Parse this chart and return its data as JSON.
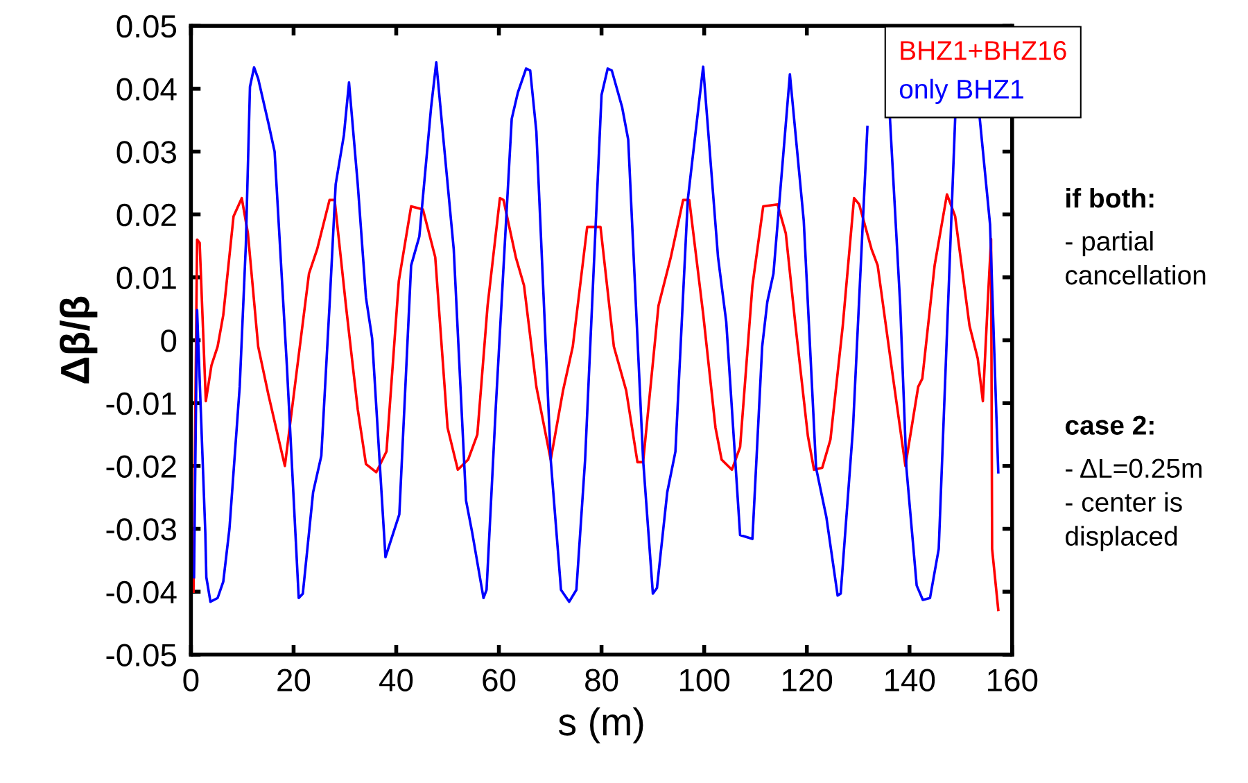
{
  "chart_data": {
    "type": "line",
    "xlabel": "s (m)",
    "ylabel": "Δβ/β",
    "xlim": [
      0,
      160
    ],
    "xticks": [
      0,
      20,
      40,
      60,
      80,
      100,
      120,
      140,
      160
    ],
    "ylim": [
      -0.05,
      0.05
    ],
    "yticks": [
      {
        "value": -0.05,
        "label": "-0.05"
      },
      {
        "value": -0.04,
        "label": "-0.04"
      },
      {
        "value": -0.03,
        "label": "-0.03"
      },
      {
        "value": -0.02,
        "label": "-0.02"
      },
      {
        "value": -0.01,
        "label": "-0.01"
      },
      {
        "value": 0,
        "label": "0"
      },
      {
        "value": 0.01,
        "label": "0.01"
      },
      {
        "value": 0.02,
        "label": "0.02"
      },
      {
        "value": 0.03,
        "label": "0.03"
      },
      {
        "value": 0.04,
        "label": "0.04"
      },
      {
        "value": 0.05,
        "label": "0.05"
      }
    ],
    "grid": false,
    "legend": "top right",
    "marker": "none",
    "line_style": "solid",
    "series": [
      {
        "name": "BHZ1+BHZ16",
        "color": "#ff0000",
        "x": [
          0.5,
          1.2,
          1.7,
          2.9,
          4,
          5.2,
          6.3,
          8.3,
          9.9,
          11.1,
          13.1,
          15.1,
          18.3,
          20.6,
          23,
          24.6,
          27,
          28,
          30.2,
          32.5,
          34.1,
          36.1,
          38.1,
          40.5,
          42.9,
          45.2,
          47.6,
          50,
          52,
          54,
          55.8,
          57.8,
          60.2,
          60.9,
          63.3,
          64.9,
          67.3,
          70.1,
          72.5,
          74.4,
          77.2,
          79.8,
          82.4,
          84.8,
          87,
          88.1,
          91.1,
          93.5,
          95.9,
          97.1,
          99.8,
          102.2,
          103.4,
          105.4,
          107,
          109.4,
          111.5,
          114.3,
          115.9,
          117.8,
          120.2,
          121.4,
          123,
          124.6,
          127,
          129.2,
          130.2,
          132.6,
          133.8,
          136.6,
          139.2,
          141.7,
          142.5,
          144.9,
          147.3,
          148.9,
          151.7,
          153.3,
          154.3,
          155.3,
          155.9,
          156.1,
          157.3
        ],
        "values": [
          -0.04,
          0.016,
          0.0155,
          -0.0097,
          -0.004,
          -0.001,
          0.004,
          0.0197,
          0.0226,
          0.017,
          -0.001,
          -0.0087,
          -0.02,
          -0.005,
          0.0106,
          0.0145,
          0.0223,
          0.0223,
          0.0055,
          -0.011,
          -0.0197,
          -0.021,
          -0.0177,
          0.0094,
          0.0213,
          0.0208,
          0.0132,
          -0.0139,
          -0.0206,
          -0.019,
          -0.015,
          0.0055,
          0.0226,
          0.0223,
          0.0132,
          0.0087,
          -0.0074,
          -0.019,
          -0.008,
          -0.001,
          0.018,
          0.018,
          -0.001,
          -0.008,
          -0.0194,
          -0.0194,
          0.0055,
          0.0132,
          0.0223,
          0.0223,
          0.0042,
          -0.0139,
          -0.019,
          -0.0206,
          -0.017,
          0.0087,
          0.0213,
          0.0216,
          0.017,
          0.0023,
          -0.0152,
          -0.0206,
          -0.0203,
          -0.0158,
          0.0023,
          0.0226,
          0.0216,
          0.0145,
          0.0119,
          -0.0048,
          -0.02,
          -0.0074,
          -0.0061,
          0.0119,
          0.0232,
          0.0197,
          0.0023,
          -0.0029,
          -0.0097,
          0.0068,
          0.0161,
          -0.0332,
          -0.0429
        ]
      },
      {
        "name": "only BHZ1",
        "color": "#0000ff",
        "x": [
          0.6,
          1.2,
          2.8,
          3,
          3.8,
          5.2,
          6.3,
          7.5,
          9.5,
          10.7,
          11.5,
          12.3,
          13.1,
          15.1,
          16.3,
          18.7,
          21,
          21.8,
          23.8,
          25.4,
          27,
          28.2,
          29.8,
          30.8,
          32.5,
          34.1,
          35.3,
          37.9,
          40.6,
          42.9,
          44.5,
          46.8,
          47.8,
          49.2,
          51.2,
          53.6,
          54.8,
          57,
          57.6,
          59.4,
          62.5,
          63.7,
          65.3,
          66.1,
          67.3,
          70.1,
          72.1,
          73.7,
          75.1,
          76.8,
          80,
          81.2,
          82,
          84,
          85.2,
          88.1,
          90,
          90.8,
          92.8,
          94.4,
          96.8,
          99.8,
          102.7,
          104.3,
          107,
          109.4,
          111.3,
          112.3,
          113.5,
          116.7,
          119.4,
          121.8,
          123.8,
          126,
          126.6,
          129,
          131.8,
          134,
          136.2,
          138.2,
          139.4,
          141.4,
          142.6,
          144,
          145.7,
          148.9,
          151.3,
          153.7,
          155.7,
          157.3
        ],
        "values": [
          -0.0377,
          0.0048,
          -0.0306,
          -0.0377,
          -0.0416,
          -0.041,
          -0.0384,
          -0.03,
          -0.0074,
          0.0152,
          0.0403,
          0.0434,
          0.0416,
          0.0345,
          0.03,
          -0.0042,
          -0.041,
          -0.0403,
          -0.0242,
          -0.0184,
          0.0055,
          0.0248,
          0.0326,
          0.041,
          0.0248,
          0.0068,
          0.0003,
          -0.0345,
          -0.0277,
          0.0119,
          0.0165,
          0.0371,
          0.0442,
          0.0319,
          0.0145,
          -0.0255,
          -0.0306,
          -0.041,
          -0.0397,
          -0.0106,
          0.0352,
          0.0394,
          0.0432,
          0.0429,
          0.0332,
          -0.019,
          -0.0397,
          -0.0416,
          -0.0397,
          -0.019,
          0.039,
          0.0432,
          0.0429,
          0.0371,
          0.0319,
          -0.019,
          -0.0403,
          -0.0394,
          -0.0242,
          -0.0177,
          0.0223,
          0.0435,
          0.0132,
          0.0029,
          -0.031,
          -0.0316,
          -0.001,
          0.0061,
          0.0106,
          0.0423,
          0.019,
          -0.0203,
          -0.0281,
          -0.0406,
          -0.0403,
          -0.0139,
          0.0339,
          null,
          0.0352,
          0.0055,
          -0.0203,
          -0.039,
          -0.0413,
          -0.041,
          -0.0332,
          0.0352,
          null,
          0.0352,
          0.0184,
          -0.021
        ]
      }
    ],
    "annotations": [
      "if both:\n- partial\ncancellation",
      "case 2:\n- ΔL=0.25m\n- center is\ndisplaced"
    ]
  }
}
